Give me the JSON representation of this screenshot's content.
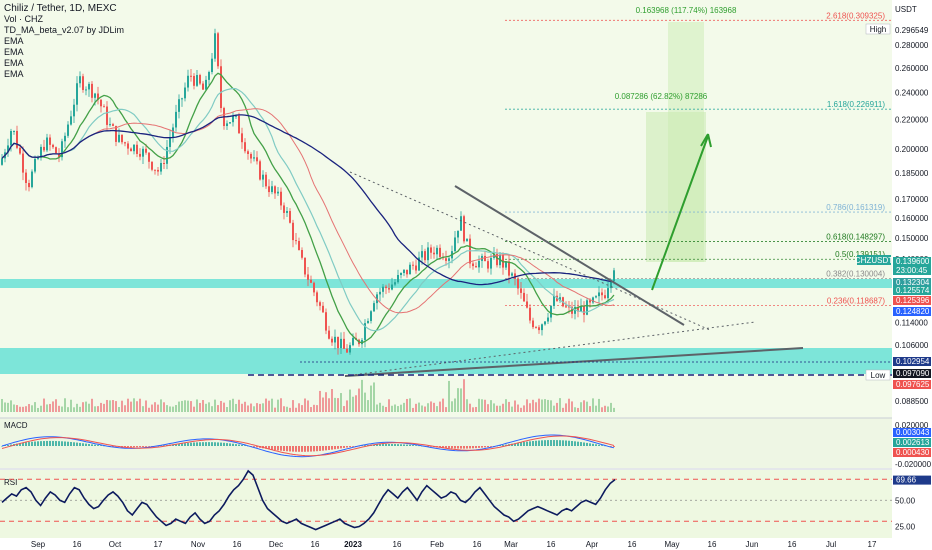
{
  "header": {
    "symbol_title": "Chiliz / Tether, 1D, MEXC",
    "indicators": [
      "Vol · CHZ",
      "TD_MA_beta_v2.07 by JDLim",
      "EMA",
      "EMA",
      "EMA",
      "EMA"
    ]
  },
  "axis": {
    "currency": "USDT",
    "price_ticks": [
      "0.280000",
      "0.260000",
      "0.240000",
      "0.220000",
      "0.200000",
      "0.185000",
      "0.170000",
      "0.160000",
      "0.150000",
      "0.140000",
      "0.130000",
      "0.122000",
      "0.114000",
      "0.106000",
      "0.097090",
      "0.088500"
    ],
    "price_tick_values": [
      0.28,
      0.26,
      0.24,
      0.22,
      0.2,
      0.185,
      0.17,
      0.16,
      0.15,
      0.14,
      0.13,
      0.122,
      0.114,
      0.106,
      0.09709,
      0.0885
    ],
    "high_label": "High",
    "high_value": "0.296549",
    "low_label": "Low",
    "low_value": "0.097090",
    "x_ticks": [
      "Sep",
      "16",
      "Oct",
      "17",
      "Nov",
      "16",
      "Dec",
      "16",
      "2023",
      "16",
      "Feb",
      "16",
      "Mar",
      "16",
      "Apr",
      "16",
      "May",
      "16",
      "Jun",
      "16",
      "Jul",
      "17"
    ]
  },
  "price_badges": [
    {
      "text": "0.139600",
      "color": "#26a69a"
    },
    {
      "text": "23:00:45",
      "color": "#26a69a"
    },
    {
      "text": "0.132304",
      "color": "#2f9e9e"
    },
    {
      "text": "0.125574",
      "color": "#26a69a"
    },
    {
      "text": "0.125396",
      "color": "#ef5350"
    },
    {
      "text": "0.124820",
      "color": "#2962ff"
    },
    {
      "text": "0.102954",
      "color": "#1e3a8a"
    },
    {
      "text": "0.097090",
      "color": "#131722"
    },
    {
      "text": "0.097625",
      "color": "#ef5350"
    }
  ],
  "symbol_badge": "CHZUSDT",
  "fib_levels": [
    {
      "label": "2.618(0.309325)",
      "price": 0.3033,
      "color": "#ef5350"
    },
    {
      "label": "1.618(0.226911)",
      "price": 0.2275,
      "color": "#26a69a"
    },
    {
      "label": "0.786(0.161319)",
      "price": 0.1631,
      "color": "#7fb3d5"
    },
    {
      "label": "0.618(0.148297)",
      "price": 0.1483,
      "color": "#1f7a1f"
    },
    {
      "label": "0.5(0.139151)",
      "price": 0.14,
      "color": "#1f7a1f"
    },
    {
      "label": "0.382(0.130004)",
      "price": 0.1315,
      "color": "#8a8a8a"
    },
    {
      "label": "0.236(0.118687)",
      "price": 0.1205,
      "color": "#ef5350"
    }
  ],
  "targets": [
    {
      "label": "0.163968 (117.74%) 163968"
    },
    {
      "label": "0.087286 (62.82%) 87286"
    }
  ],
  "macd": {
    "title": "MACD",
    "ticks": [
      "0.020000",
      "-0.020000"
    ],
    "badges": [
      {
        "text": "0.003043",
        "color": "#2962ff"
      },
      {
        "text": "0.002613",
        "color": "#26a69a"
      },
      {
        "text": "0.000430",
        "color": "#ef5350"
      }
    ]
  },
  "rsi": {
    "title": "RSI",
    "ticks": [
      "50.00",
      "25.00"
    ],
    "badge": {
      "text": "69.66",
      "color": "#1e3a8a"
    },
    "values": [
      48,
      52,
      56,
      54,
      60,
      62,
      58,
      50,
      45,
      52,
      58,
      55,
      50,
      48,
      56,
      62,
      60,
      52,
      46,
      42,
      44,
      50,
      55,
      58,
      54,
      48,
      40,
      36,
      42,
      48,
      46,
      40,
      34,
      30,
      26,
      28,
      32,
      30,
      28,
      34,
      38,
      32,
      28,
      30,
      36,
      40,
      46,
      54,
      60,
      64,
      70,
      78,
      74,
      62,
      50,
      42,
      38,
      34,
      30,
      28,
      30,
      32,
      28,
      26,
      24,
      22,
      24,
      26,
      28,
      30,
      32,
      28,
      26,
      24,
      25,
      28,
      32,
      38,
      46,
      54,
      60,
      56,
      52,
      58,
      62,
      56,
      50,
      58,
      64,
      60,
      56,
      52,
      54,
      58,
      56,
      50,
      48,
      52,
      58,
      62,
      56,
      50,
      44,
      40,
      36,
      34,
      30,
      32,
      36,
      40,
      42,
      44,
      42,
      40,
      38,
      36,
      40,
      42,
      40,
      44,
      48,
      50,
      48,
      46,
      52,
      60,
      66,
      69.66
    ]
  },
  "colors": {
    "up": "#26a69a",
    "down": "#ef5350",
    "bg_green": "#eef8e1",
    "support_band": "#56ded3",
    "blue_ma": "#1a237e"
  }
}
